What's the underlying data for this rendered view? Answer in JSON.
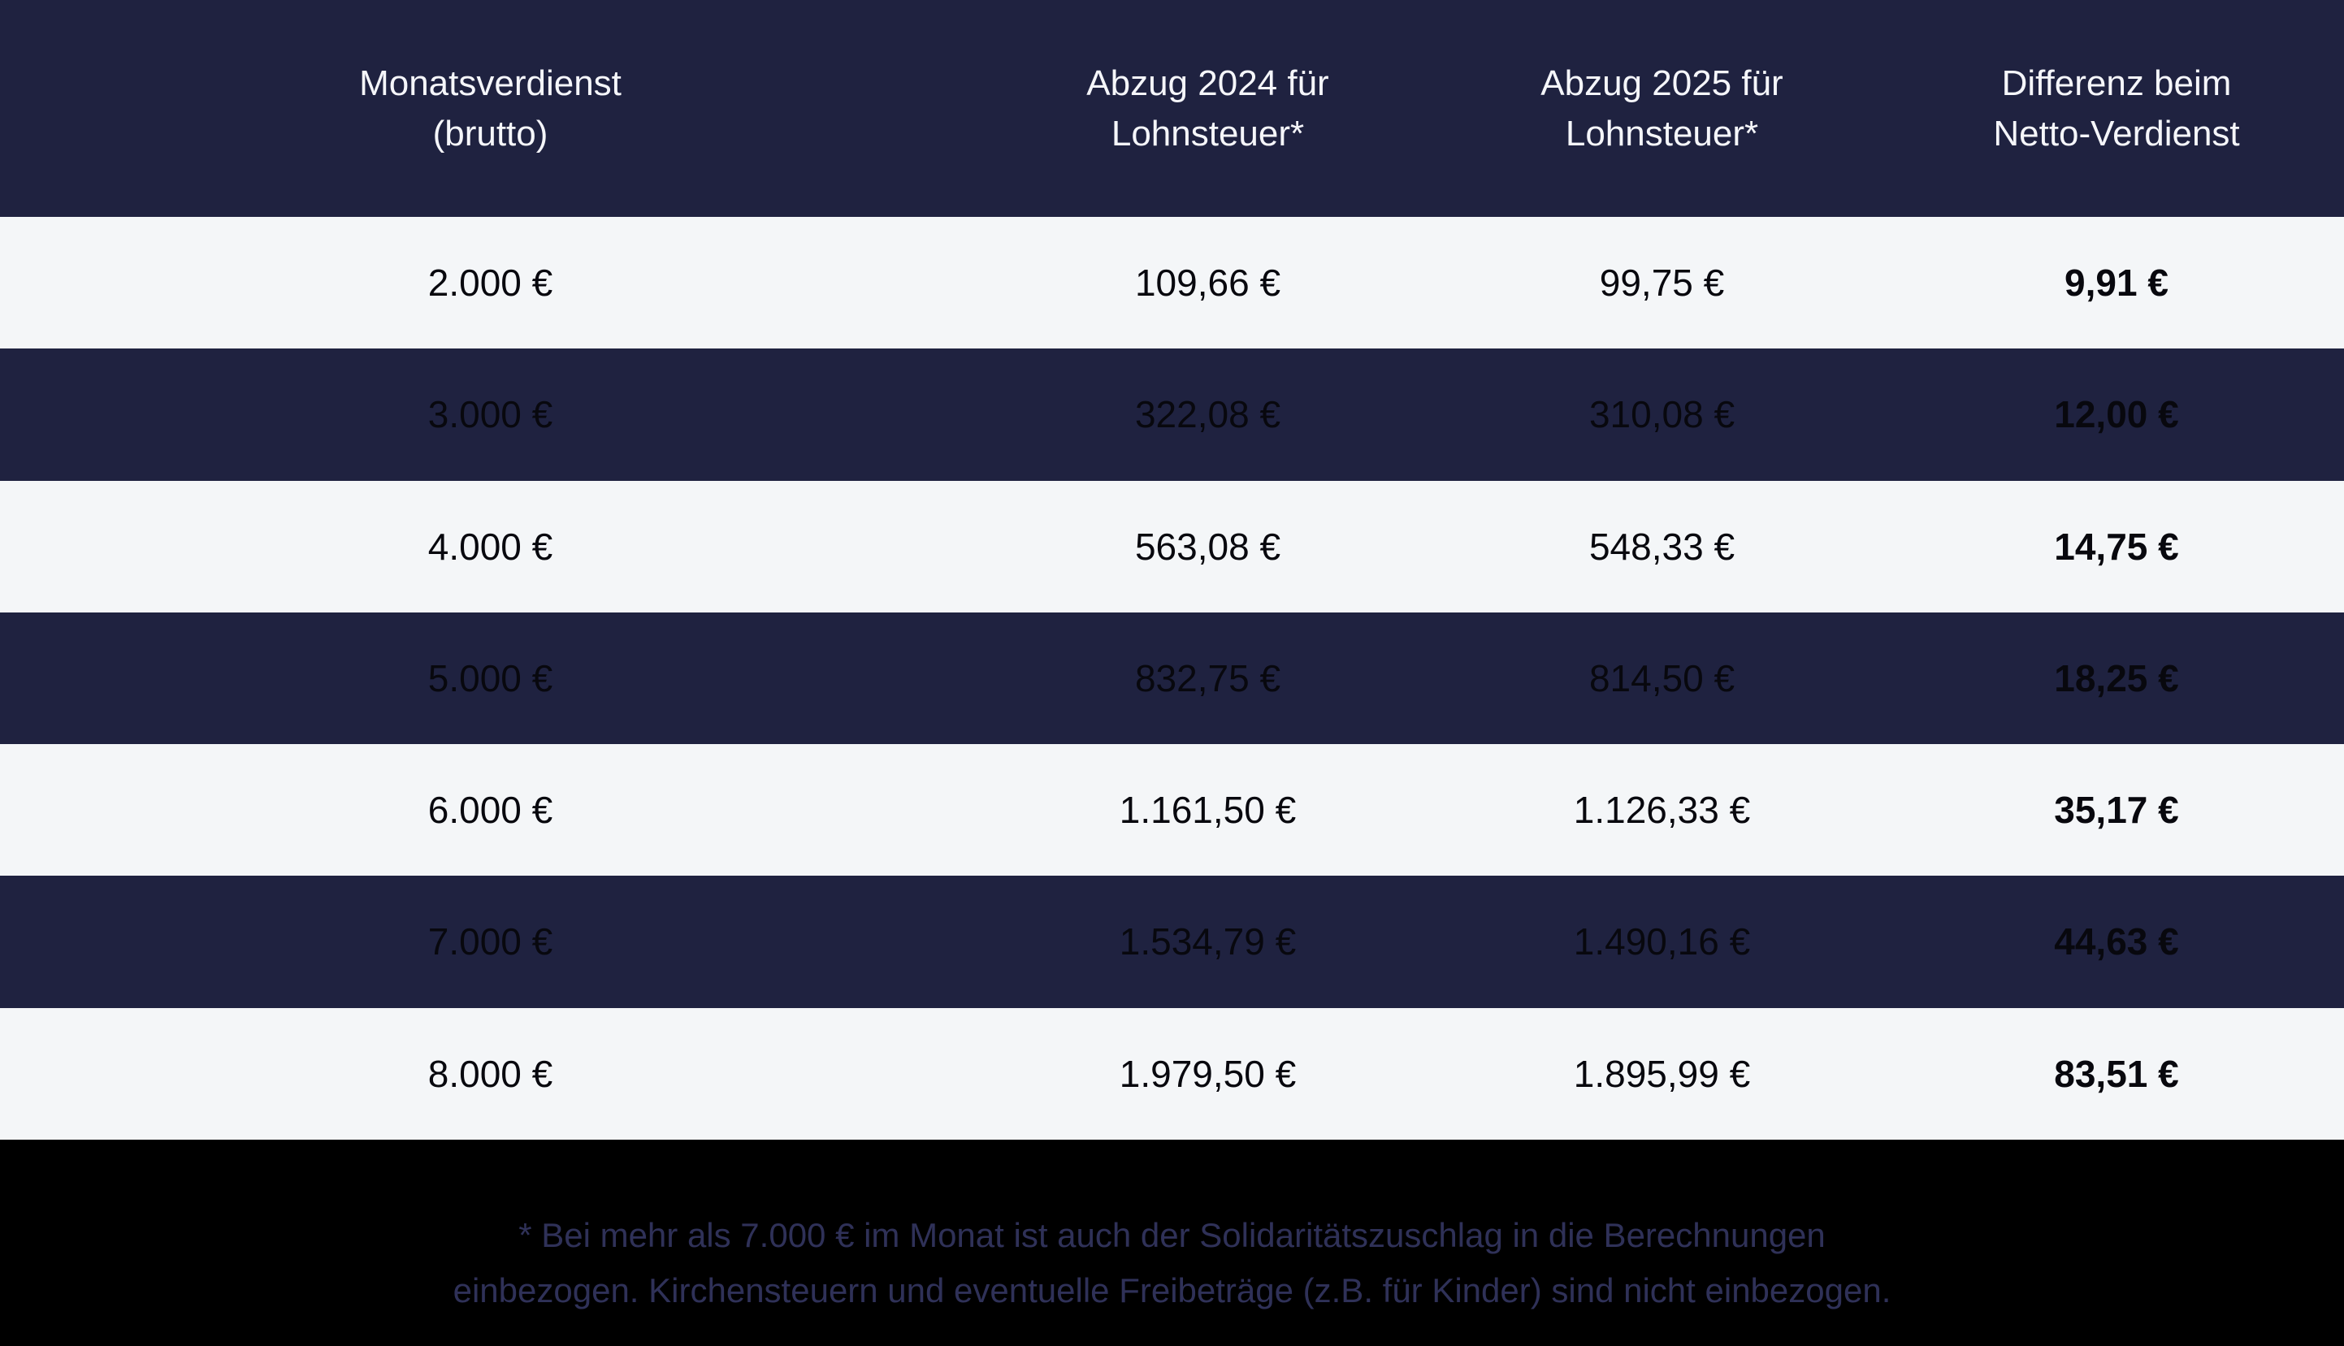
{
  "colors": {
    "header_bg": "#1f2240",
    "dark_row_bg": "#1f2240",
    "light_row_bg": "#f4f6f8",
    "header_text": "#f5f6fa",
    "body_text": "#08080e",
    "footer_bg": "#000000",
    "footer_text": "#2f3158"
  },
  "table": {
    "headers": [
      "Monatsverdienst\n(brutto)",
      "Abzug 2024 für\nLohnsteuer*",
      "Abzug 2025 für\nLohnsteuer*",
      "Differenz beim\nNetto-Verdienst"
    ],
    "rows": [
      [
        "2.000 €",
        "109,66 €",
        "99,75 €",
        "9,91 €"
      ],
      [
        "3.000 €",
        "322,08 €",
        "310,08 €",
        "12,00 €"
      ],
      [
        "4.000 €",
        "563,08 €",
        "548,33 €",
        "14,75 €"
      ],
      [
        "5.000 €",
        "832,75 €",
        "814,50 €",
        "18,25 €"
      ],
      [
        "6.000 €",
        "1.161,50 €",
        "1.126,33 €",
        "35,17 €"
      ],
      [
        "7.000 €",
        "1.534,79 €",
        "1.490,16 €",
        "44,63 €"
      ],
      [
        "8.000 €",
        "1.979,50 €",
        "1.895,99 €",
        "83,51 €"
      ]
    ]
  },
  "footer": {
    "lines": [
      "* Bei mehr als 7.000 € im Monat ist auch der Solidaritätszuschlag in die Berechnungen",
      "einbezogen. Kirchensteuern und eventuelle Freibeträge (z.B. für Kinder) sind nicht einbezogen."
    ]
  },
  "chart_data": {
    "type": "table",
    "title": "",
    "columns": [
      "Monatsverdienst (brutto)",
      "Abzug 2024 für Lohnsteuer*",
      "Abzug 2025 für Lohnsteuer*",
      "Differenz beim Netto-Verdienst"
    ],
    "categories": [
      2000,
      3000,
      4000,
      5000,
      6000,
      7000,
      8000
    ],
    "series": [
      {
        "name": "Abzug 2024 für Lohnsteuer (€)",
        "values": [
          109.66,
          322.08,
          563.08,
          832.75,
          1161.5,
          1534.79,
          1979.5
        ]
      },
      {
        "name": "Abzug 2025 für Lohnsteuer (€)",
        "values": [
          99.75,
          310.08,
          548.33,
          814.5,
          1126.33,
          1490.16,
          1895.99
        ]
      },
      {
        "name": "Differenz beim Netto-Verdienst (€)",
        "values": [
          9.91,
          12.0,
          14.75,
          18.25,
          35.17,
          44.63,
          83.51
        ]
      }
    ],
    "footnote": "* Bei mehr als 7.000 € im Monat ist auch der Solidaritätszuschlag in die Berechnungen einbezogen. Kirchensteuern und eventuelle Freibeträge (z.B. für Kinder) sind nicht einbezogen."
  }
}
